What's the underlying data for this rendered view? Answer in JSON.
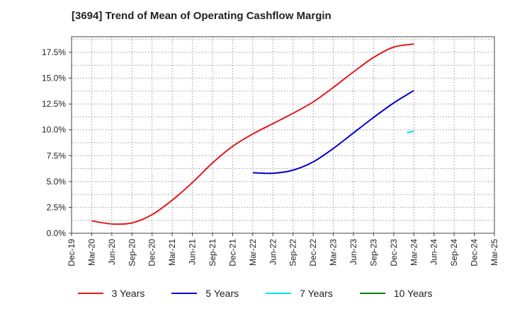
{
  "chart_data": {
    "type": "line",
    "title": "[3694]  Trend of Mean of Operating Cashflow Margin",
    "xlabel": "",
    "ylabel": "",
    "x_ticks": [
      "Dec-19",
      "Mar-20",
      "Jun-20",
      "Sep-20",
      "Dec-20",
      "Mar-21",
      "Jun-21",
      "Sep-21",
      "Dec-21",
      "Mar-22",
      "Jun-22",
      "Sep-22",
      "Dec-22",
      "Mar-23",
      "Jun-23",
      "Sep-23",
      "Dec-23",
      "Mar-24",
      "Jun-24",
      "Sep-24",
      "Dec-24",
      "Mar-25"
    ],
    "y_ticks": [
      "0.0%",
      "2.5%",
      "5.0%",
      "7.5%",
      "10.0%",
      "12.5%",
      "15.0%",
      "17.5%"
    ],
    "ylim": [
      0,
      19
    ],
    "grid": true,
    "legend_position": "bottom",
    "series": [
      {
        "name": "3 Years",
        "color": "#e31a1c",
        "x": [
          "Mar-20",
          "Jun-20",
          "Sep-20",
          "Dec-20",
          "Mar-21",
          "Jun-21",
          "Sep-21",
          "Dec-21",
          "Mar-22",
          "Jun-22",
          "Sep-22",
          "Dec-22",
          "Mar-23",
          "Jun-23",
          "Sep-23",
          "Dec-23",
          "Mar-24"
        ],
        "values": [
          1.2,
          0.9,
          1.0,
          1.8,
          3.2,
          4.9,
          6.8,
          8.4,
          9.6,
          10.6,
          11.6,
          12.7,
          14.1,
          15.6,
          17.0,
          18.0,
          18.3
        ]
      },
      {
        "name": "5 Years",
        "color": "#0000cc",
        "x": [
          "Mar-22",
          "Jun-22",
          "Sep-22",
          "Dec-22",
          "Mar-23",
          "Jun-23",
          "Sep-23",
          "Dec-23",
          "Mar-24"
        ],
        "values": [
          5.85,
          5.8,
          6.1,
          6.9,
          8.2,
          9.7,
          11.2,
          12.6,
          13.8
        ]
      },
      {
        "name": "7 Years",
        "color": "#00e5ee",
        "x": [
          "Dec-23",
          "Mar-24"
        ],
        "values": [
          9.75,
          9.85
        ]
      },
      {
        "name": "10 Years",
        "color": "#008000",
        "x": [],
        "values": []
      }
    ]
  }
}
